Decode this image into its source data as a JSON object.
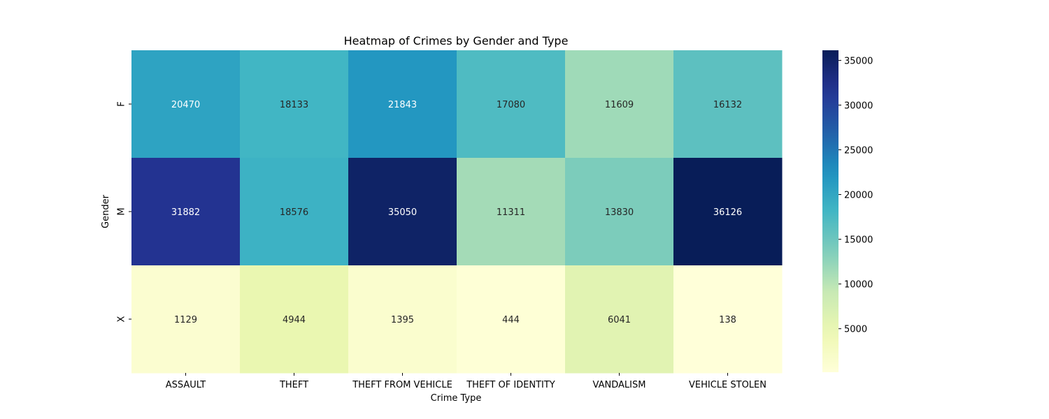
{
  "chart_data": {
    "type": "heatmap",
    "title": "Heatmap of Crimes by Gender and Type",
    "xlabel": "Crime Type",
    "ylabel": "Gender",
    "columns": [
      "ASSAULT",
      "THEFT",
      "THEFT FROM VEHICLE",
      "THEFT OF IDENTITY",
      "VANDALISM",
      "VEHICLE STOLEN"
    ],
    "rows": [
      "F",
      "M",
      "X"
    ],
    "values": [
      [
        20470,
        18133,
        21843,
        17080,
        11609,
        16132
      ],
      [
        31882,
        18576,
        35050,
        11311,
        13830,
        36126
      ],
      [
        1129,
        4944,
        1395,
        444,
        6041,
        138
      ]
    ],
    "colormap": "YlGnBu",
    "colorbar": {
      "range": [
        138,
        36126
      ],
      "ticks": [
        5000,
        10000,
        15000,
        20000,
        25000,
        30000,
        35000
      ]
    }
  }
}
